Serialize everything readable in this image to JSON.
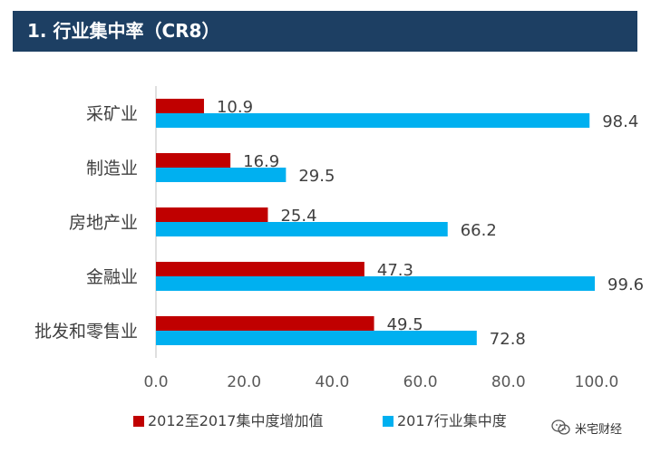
{
  "header": {
    "title": "1. 行业集中率（CR8）"
  },
  "watermark": {
    "text": "米宅财经"
  },
  "colors": {
    "increase": "#c00000",
    "level2017": "#00b0f0",
    "header_bg": "#1d3f63"
  },
  "chart_data": {
    "type": "bar",
    "orientation": "horizontal",
    "categories": [
      "采矿业",
      "制造业",
      "房地产业",
      "金融业",
      "批发和零售业"
    ],
    "series": [
      {
        "name": "2012至2017集中度增加值",
        "color": "#c00000",
        "values": [
          10.9,
          16.9,
          25.4,
          47.3,
          49.5
        ]
      },
      {
        "name": "2017行业集中度",
        "color": "#00b0f0",
        "values": [
          98.4,
          29.5,
          66.2,
          99.6,
          72.8
        ]
      }
    ],
    "value_labels": [
      [
        "10.9",
        "16.9",
        "25.4",
        "47.3",
        "49.5"
      ],
      [
        "98.4",
        "29.5",
        "66.2",
        "99.6",
        "72.8"
      ]
    ],
    "xlim": [
      0,
      100
    ],
    "xticks": [
      "0.0",
      "20.0",
      "40.0",
      "60.0",
      "80.0",
      "100.0"
    ],
    "legend_position": "bottom",
    "grid": false
  }
}
